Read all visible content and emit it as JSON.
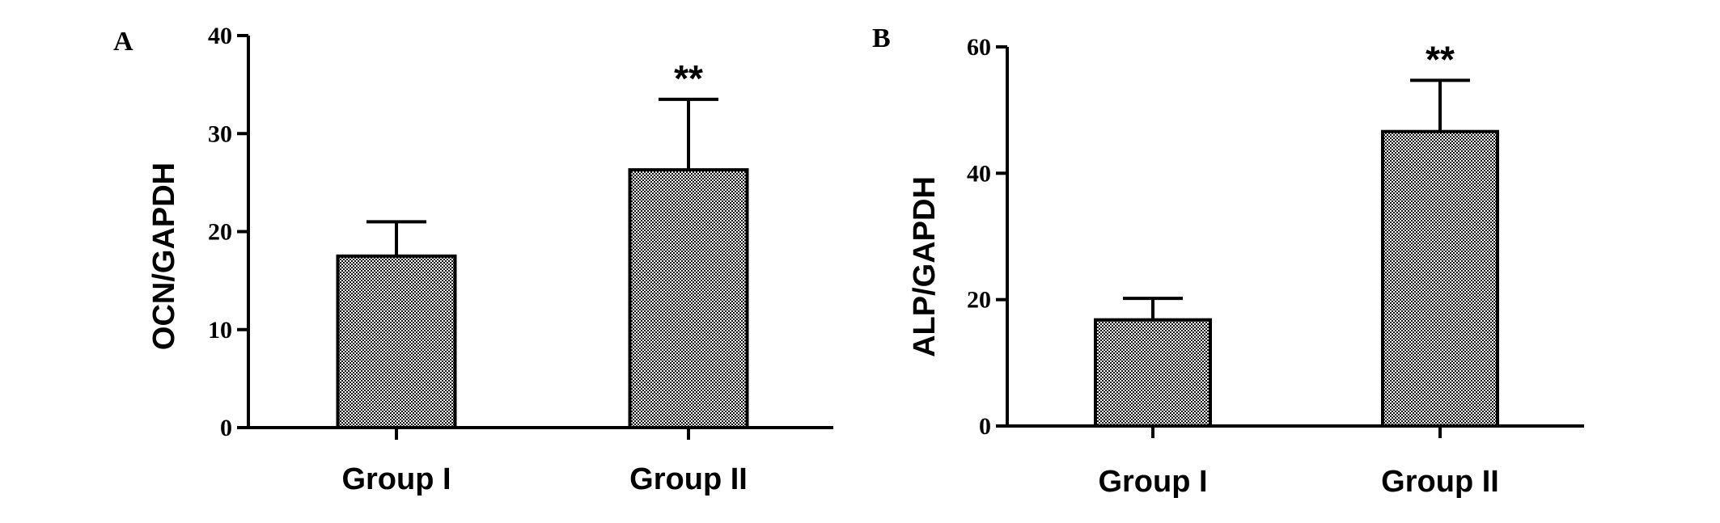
{
  "chart_data": [
    {
      "panel": "A",
      "type": "bar",
      "categories": [
        "Group I",
        "Group II"
      ],
      "values": [
        17.5,
        26.3
      ],
      "errors": [
        3.5,
        7.2
      ],
      "significance": [
        "",
        "**"
      ],
      "ylabel": "OCN/GAPDH",
      "xlabel": "",
      "ylim": [
        0,
        40
      ],
      "yticks": [
        "0",
        "10",
        "20",
        "30",
        "40"
      ],
      "grid": false,
      "legend": "none",
      "bar_color": "#8c8c8c"
    },
    {
      "panel": "B",
      "type": "bar",
      "categories": [
        "Group I",
        "Group II"
      ],
      "values": [
        16.8,
        46.6
      ],
      "errors": [
        3.4,
        8.1
      ],
      "significance": [
        "",
        "**"
      ],
      "ylabel": "ALP/GAPDH",
      "xlabel": "",
      "ylim": [
        0,
        60
      ],
      "yticks": [
        "0",
        "20",
        "40",
        "60"
      ],
      "grid": false,
      "legend": "none",
      "bar_color": "#8c8c8c"
    }
  ]
}
